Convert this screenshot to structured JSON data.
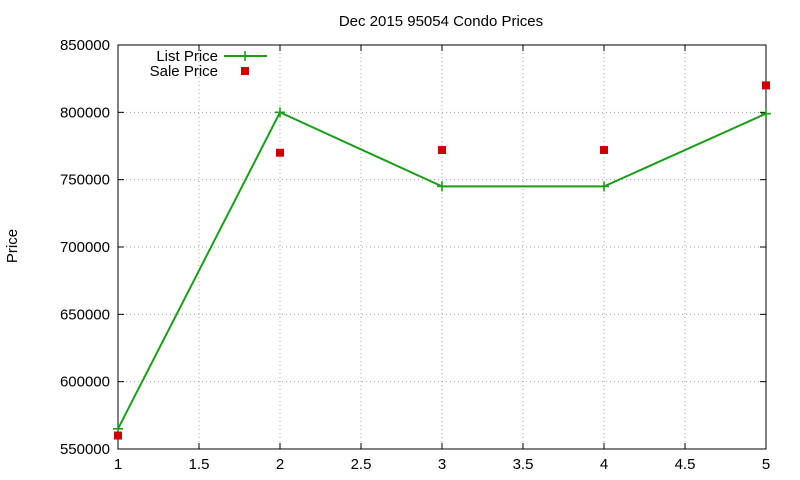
{
  "chart_data": {
    "type": "line",
    "title": "Dec 2015 95054 Condo Prices",
    "xlabel": "",
    "ylabel": "Price",
    "x": [
      1,
      2,
      3,
      4,
      5
    ],
    "xlim": [
      1,
      5
    ],
    "ylim": [
      550000,
      850000
    ],
    "xticks": [
      1,
      1.5,
      2,
      2.5,
      3,
      3.5,
      4,
      4.5,
      5
    ],
    "xtick_labels": [
      "1",
      "1.5",
      "2",
      "2.5",
      "3",
      "3.5",
      "4",
      "4.5",
      "5"
    ],
    "yticks": [
      550000,
      600000,
      650000,
      700000,
      750000,
      800000,
      850000
    ],
    "ytick_labels": [
      "550000",
      "600000",
      "650000",
      "700000",
      "750000",
      "800000",
      "850000"
    ],
    "grid": true,
    "legend_position": "top-left",
    "series": [
      {
        "name": "List Price",
        "style": "lines+points",
        "marker": "plus",
        "color": "#1a9e1a",
        "values": [
          565000,
          800000,
          745000,
          745000,
          799000
        ]
      },
      {
        "name": "Sale Price",
        "style": "points",
        "marker": "square",
        "color": "#cc0000",
        "values": [
          560000,
          770000,
          772000,
          772000,
          820000
        ]
      }
    ]
  }
}
